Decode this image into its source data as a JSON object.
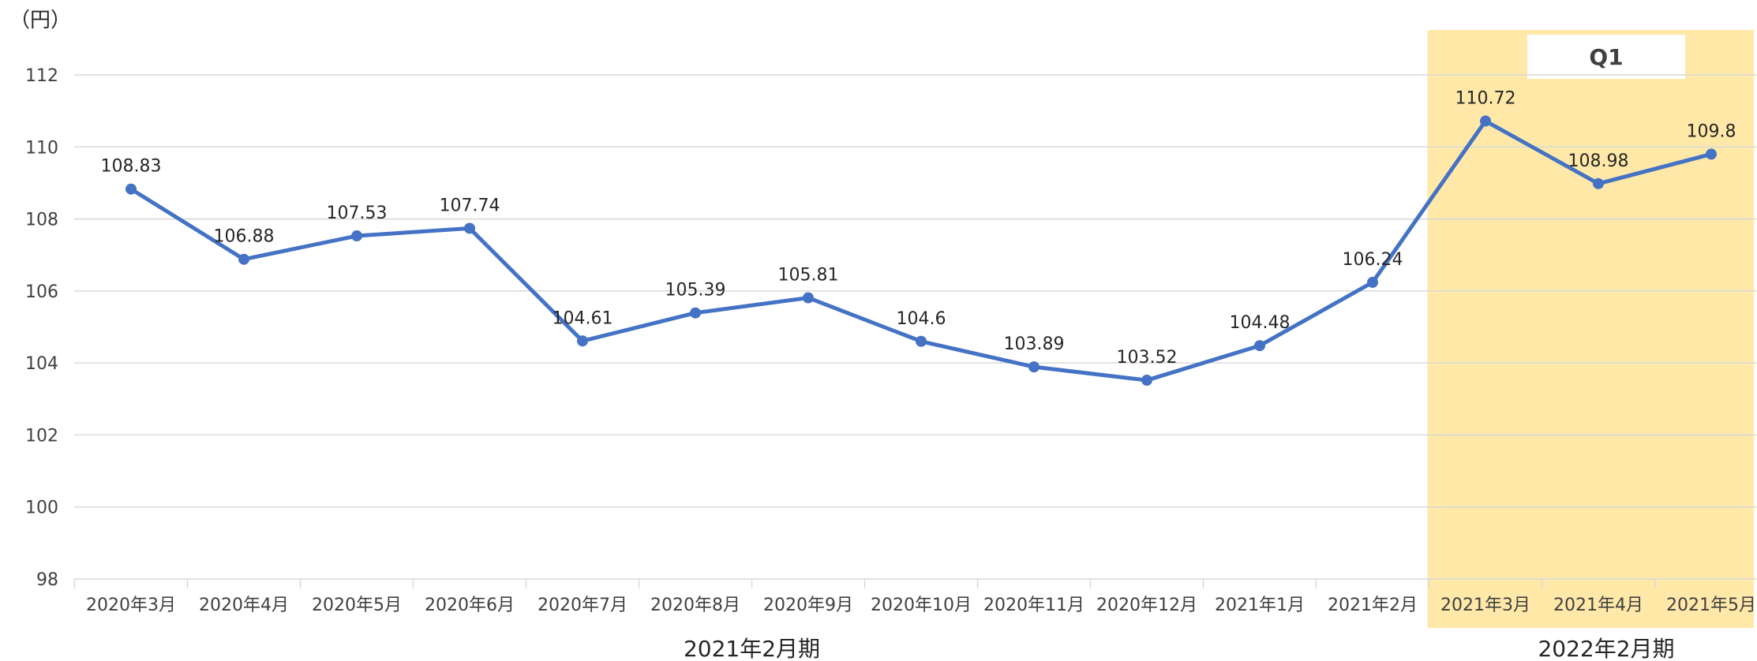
{
  "chart_data": {
    "type": "line",
    "unit_label": "（円）",
    "categories": [
      "2020年3月",
      "2020年4月",
      "2020年5月",
      "2020年6月",
      "2020年7月",
      "2020年8月",
      "2020年9月",
      "2020年10月",
      "2020年11月",
      "2020年12月",
      "2021年1月",
      "2021年2月",
      "2021年3月",
      "2021年4月",
      "2021年5月"
    ],
    "series": [
      {
        "values": [
          108.83,
          106.88,
          107.53,
          107.74,
          104.61,
          105.39,
          105.81,
          104.6,
          103.89,
          103.52,
          104.48,
          106.24,
          110.72,
          108.98,
          109.8
        ],
        "color": "#4472C4"
      }
    ],
    "data_labels": [
      "108.83",
      "106.88",
      "107.53",
      "107.74",
      "104.61",
      "105.39",
      "105.81",
      "104.6",
      "103.89",
      "103.52",
      "104.48",
      "106.24",
      "110.72",
      "108.98",
      "109.8"
    ],
    "ylim": [
      98,
      112
    ],
    "yticks": [
      98,
      100,
      102,
      104,
      106,
      108,
      110,
      112
    ],
    "grid": true,
    "highlight": {
      "from_index": 12,
      "to_index": 14,
      "label": "Q1",
      "color": "#FFE8A8"
    },
    "periods": [
      {
        "label": "2021年2月期",
        "from_index": 0,
        "to_index": 11
      },
      {
        "label": "2022年2月期",
        "from_index": 12,
        "to_index": 14
      }
    ]
  }
}
